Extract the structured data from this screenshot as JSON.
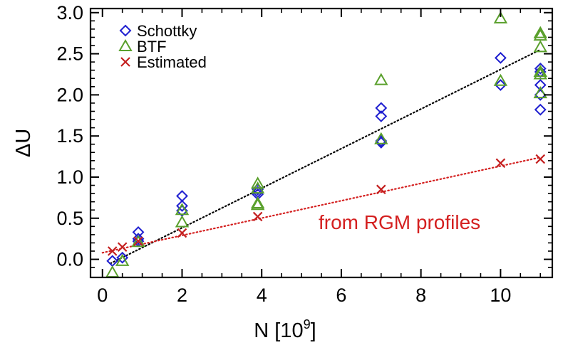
{
  "chart_data": {
    "type": "scatter",
    "xlabel": "N [10",
    "xlabel_sup": "9",
    "xlabel_close": "]",
    "ylabel": "ΔU",
    "xlim": [
      -0.3,
      11.3
    ],
    "ylim": [
      -0.22,
      3.05
    ],
    "xticks": [
      0,
      2,
      4,
      6,
      8,
      10
    ],
    "yticks": [
      0.0,
      0.5,
      1.0,
      1.5,
      2.0,
      2.5,
      3.0
    ],
    "xtick_labels": [
      "0",
      "2",
      "4",
      "6",
      "8",
      "10"
    ],
    "ytick_labels": [
      "0.0",
      "0.5",
      "1.0",
      "1.5",
      "2.0",
      "2.5",
      "3.0"
    ],
    "grid": false,
    "legend_position": "top-left",
    "annotation": {
      "text": "from RGM profiles",
      "color": "#d42020"
    },
    "series": [
      {
        "name": "Schottky",
        "marker": "diamond",
        "color": "#1f1fd0",
        "points": [
          [
            0.25,
            -0.02
          ],
          [
            0.5,
            0.02
          ],
          [
            0.9,
            0.33
          ],
          [
            0.9,
            0.25
          ],
          [
            0.9,
            0.22
          ],
          [
            2.0,
            0.77
          ],
          [
            2.0,
            0.65
          ],
          [
            2.0,
            0.59
          ],
          [
            3.9,
            0.85
          ],
          [
            3.9,
            0.82
          ],
          [
            3.9,
            0.79
          ],
          [
            7.0,
            1.84
          ],
          [
            7.0,
            1.74
          ],
          [
            7.0,
            1.44
          ],
          [
            7.0,
            1.42
          ],
          [
            10.0,
            2.45
          ],
          [
            10.0,
            2.12
          ],
          [
            11.0,
            2.32
          ],
          [
            11.0,
            2.28
          ],
          [
            11.0,
            2.12
          ],
          [
            11.0,
            2.0
          ],
          [
            11.0,
            1.82
          ]
        ]
      },
      {
        "name": "BTF",
        "marker": "triangle",
        "color": "#5aa02c",
        "points": [
          [
            0.25,
            -0.16
          ],
          [
            0.5,
            -0.02
          ],
          [
            0.9,
            0.21
          ],
          [
            2.0,
            0.6
          ],
          [
            2.0,
            0.45
          ],
          [
            3.9,
            0.92
          ],
          [
            3.9,
            0.86
          ],
          [
            3.9,
            0.68
          ],
          [
            3.9,
            0.66
          ],
          [
            7.0,
            2.18
          ],
          [
            7.0,
            1.46
          ],
          [
            10.0,
            2.93
          ],
          [
            10.0,
            2.17
          ],
          [
            11.0,
            2.75
          ],
          [
            11.0,
            2.72
          ],
          [
            11.0,
            2.58
          ],
          [
            11.0,
            2.28
          ],
          [
            11.0,
            2.25
          ],
          [
            11.0,
            2.02
          ]
        ]
      },
      {
        "name": "Estimated",
        "marker": "cross",
        "color": "#c42020",
        "points": [
          [
            0.25,
            0.1
          ],
          [
            0.5,
            0.15
          ],
          [
            0.9,
            0.22
          ],
          [
            2.0,
            0.32
          ],
          [
            3.9,
            0.52
          ],
          [
            7.0,
            0.85
          ],
          [
            10.0,
            1.17
          ],
          [
            11.0,
            1.22
          ]
        ]
      }
    ],
    "fit_lines": [
      {
        "color": "#000000",
        "from": [
          0.2,
          -0.05
        ],
        "to": [
          11.0,
          2.55
        ]
      },
      {
        "color": "#d42020",
        "from": [
          0.0,
          0.08
        ],
        "to": [
          11.0,
          1.24
        ]
      }
    ]
  }
}
